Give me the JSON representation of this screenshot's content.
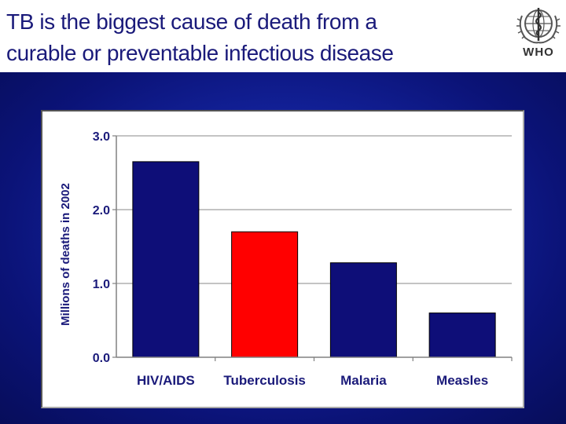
{
  "slide": {
    "title_line1": "TB is the biggest cause of death from a",
    "title_line2": "curable or preventable infectious disease",
    "logo_text": "WHO"
  },
  "colors": {
    "title": "#1a1a7a",
    "bar_default": "#0e0e78",
    "bar_highlight": "#ff0000",
    "background": "#1424a0"
  },
  "chart_data": {
    "type": "bar",
    "title": "",
    "xlabel": "",
    "ylabel": "Millions of deaths in 2002",
    "categories": [
      "HIV/AIDS",
      "Tuberculosis",
      "Malaria",
      "Measles"
    ],
    "values": [
      2.65,
      1.7,
      1.28,
      0.6
    ],
    "highlight": [
      false,
      true,
      false,
      false
    ],
    "ylim": [
      0,
      3.0
    ],
    "yticks": [
      "0.0",
      "1.0",
      "2.0",
      "3.0"
    ],
    "ytick_values": [
      0,
      1,
      2,
      3
    ],
    "grid": true,
    "legend": "none"
  }
}
